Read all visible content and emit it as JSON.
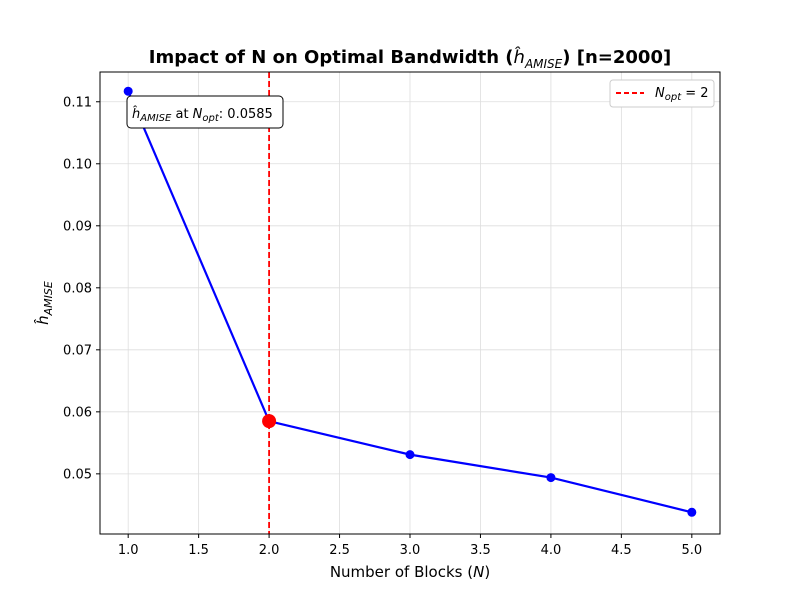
{
  "chart_data": {
    "type": "line",
    "title_prefix": "Impact of N on Optimal Bandwidth (",
    "title_symbol": "ĥ",
    "title_subscript": "AMISE",
    "title_suffix": ") [n=2000]",
    "xlabel_prefix": "Number of Blocks (",
    "xlabel_symbol": "N",
    "xlabel_suffix": ")",
    "ylabel_symbol": "ĥ",
    "ylabel_subscript": "AMISE",
    "xlim": [
      0.8,
      5.2
    ],
    "ylim": [
      0.0403,
      0.1148
    ],
    "x_ticks": [
      1.0,
      1.5,
      2.0,
      2.5,
      3.0,
      3.5,
      4.0,
      4.5,
      5.0
    ],
    "x_tick_labels": [
      "1.0",
      "1.5",
      "2.0",
      "2.5",
      "3.0",
      "3.5",
      "4.0",
      "4.5",
      "5.0"
    ],
    "y_ticks": [
      0.05,
      0.06,
      0.07,
      0.08,
      0.09,
      0.1,
      0.11
    ],
    "y_tick_labels": [
      "0.05",
      "0.06",
      "0.07",
      "0.08",
      "0.09",
      "0.10",
      "0.11"
    ],
    "grid": true,
    "series": [
      {
        "color": "#0000ff",
        "x": [
          1,
          2,
          3,
          4,
          5
        ],
        "y": [
          0.1117,
          0.0585,
          0.0531,
          0.0494,
          0.0438
        ]
      }
    ],
    "highlight": {
      "x": 2,
      "y": 0.0585,
      "color": "#ff0000"
    },
    "vline": {
      "x": 2,
      "color": "#ff0000",
      "style": "dashed",
      "legend_symbol": "N",
      "legend_subscript": "opt",
      "legend_suffix": " = 2"
    },
    "legend_position": "top-right",
    "annotation": {
      "symbol": "ĥ",
      "subscript": "AMISE",
      "middle": " at ",
      "symbol2": "N",
      "subscript2": "opt",
      "suffix": ": 0.0585"
    }
  }
}
